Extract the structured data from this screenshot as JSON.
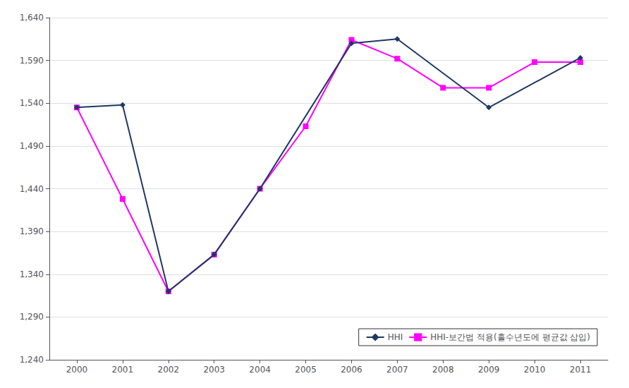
{
  "chart_data": {
    "type": "line",
    "series": [
      {
        "name": "HHI",
        "color": "#1F3864",
        "marker": "diamond",
        "x": [
          2000,
          2001,
          2002,
          2003,
          2004,
          2006,
          2007,
          2009,
          2011
        ],
        "values": [
          1535,
          1538,
          1320,
          1363,
          1440,
          1610,
          1615,
          1535,
          1593
        ]
      },
      {
        "name": "HHI-보간법 적용(홀수년도에 평균값 삽입)",
        "color": "#FF00FF",
        "marker": "square",
        "x": [
          2000,
          2001,
          2002,
          2003,
          2004,
          2005,
          2006,
          2007,
          2008,
          2009,
          2010,
          2011
        ],
        "values": [
          1535,
          1428,
          1320,
          1363,
          1440,
          1513,
          1614,
          1592,
          1558,
          1558,
          1588,
          1588
        ]
      }
    ],
    "xlim": [
      1999.4,
      2011.6
    ],
    "xticks": [
      2000,
      2001,
      2002,
      2003,
      2004,
      2005,
      2006,
      2007,
      2008,
      2009,
      2010,
      2011
    ],
    "ylim": [
      1240,
      1640
    ],
    "yticks": [
      {
        "value": 1240,
        "label": "1,240"
      },
      {
        "value": 1290,
        "label": "1,290"
      },
      {
        "value": 1340,
        "label": "1,340"
      },
      {
        "value": 1390,
        "label": "1,390"
      },
      {
        "value": 1440,
        "label": "1,440"
      },
      {
        "value": 1490,
        "label": "1,490"
      },
      {
        "value": 1540,
        "label": "1,540"
      },
      {
        "value": 1590,
        "label": "1,590"
      },
      {
        "value": 1640,
        "label": "1,640"
      }
    ],
    "grid": true,
    "legend": "lower right"
  }
}
